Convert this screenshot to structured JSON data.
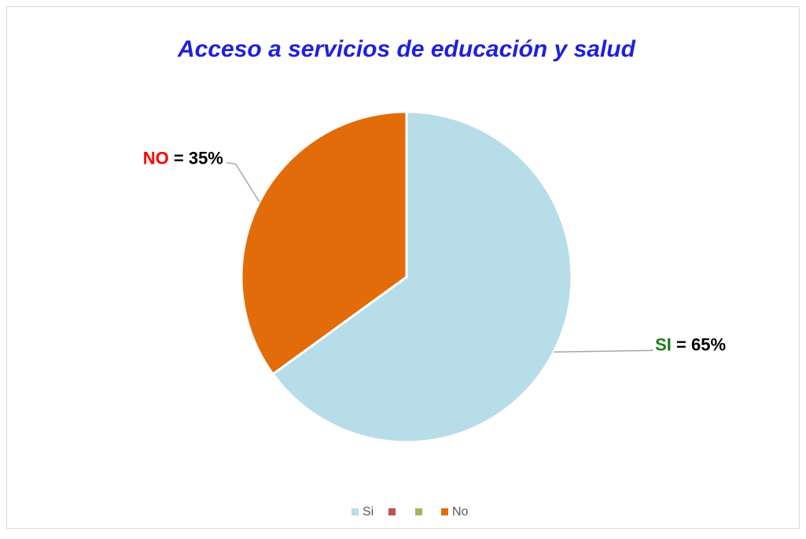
{
  "chart_data": {
    "type": "pie",
    "title": "Acceso a servicios de educación y salud",
    "categories": [
      "Si",
      null,
      null,
      "No"
    ],
    "values": [
      65,
      0,
      0,
      35
    ],
    "value_labels": [
      "SI = 65%",
      null,
      null,
      "NO = 35%"
    ],
    "colors": [
      "#b7dde8",
      "#c0504d",
      "#9bbb59",
      "#e36c0a"
    ],
    "label_name_colors": [
      "#1e7a1e",
      null,
      null,
      "#ff0000"
    ],
    "legend": "bottom"
  }
}
